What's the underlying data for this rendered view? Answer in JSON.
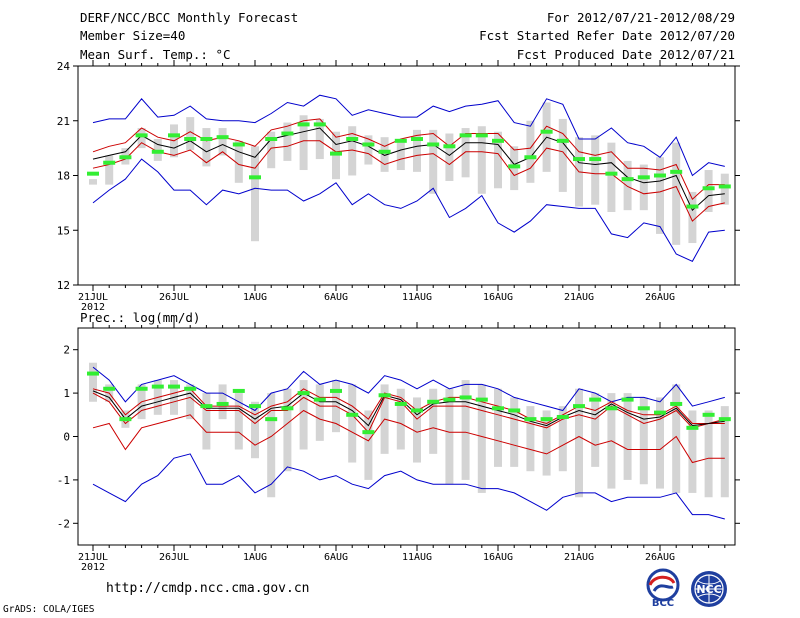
{
  "header": {
    "title": "DERF/NCC/BCC Monthly Forecast",
    "member_size": "Member Size=40",
    "panel1_variable": "Mean Surf. Temp.: °C",
    "period": "For 2012/07/21-2012/08/29",
    "started": "Fcst Started Refer Date 2012/07/20",
    "produced": "Fcst Produced Date 2012/07/21"
  },
  "footer": {
    "url": "http://cmdp.ncc.cma.gov.cn",
    "grads": "GrADS: COLA/IGES",
    "logo_bcc": "BCC",
    "logo_ncc": "NCC"
  },
  "colors": {
    "ens_max_min": "#0000cc",
    "spread": "#cc0000",
    "ens_mean": "#000000",
    "single": "#33ee33",
    "box": "#d4d4d4"
  },
  "chart_data": [
    {
      "type": "line",
      "title": "Mean Surf. Temp.: °C",
      "xlabel": "",
      "ylabel": "",
      "ylim": [
        12,
        24
      ],
      "yticks": [
        "12",
        "15",
        "18",
        "21",
        "24"
      ],
      "x_tick_labels": [
        "21JUL",
        "26JUL",
        "1AUG",
        "6AUG",
        "11AUG",
        "16AUG",
        "21AUG",
        "26AUG"
      ],
      "x_year_label": "2012",
      "x": [
        1,
        2,
        3,
        4,
        5,
        6,
        7,
        8,
        9,
        10,
        11,
        12,
        13,
        14,
        15,
        16,
        17,
        18,
        19,
        20,
        21,
        22,
        23,
        24,
        25,
        26,
        27,
        28,
        29,
        30,
        31,
        32,
        33,
        34,
        35,
        36,
        37,
        38,
        39,
        40
      ],
      "series": [
        {
          "name": "ensemble max",
          "values": [
            20.9,
            21.1,
            21.1,
            22.2,
            21.2,
            21.3,
            21.8,
            21.1,
            21.0,
            21.0,
            20.9,
            21.4,
            22.0,
            21.8,
            22.4,
            22.2,
            21.3,
            21.6,
            21.4,
            21.2,
            21.2,
            21.8,
            21.5,
            21.8,
            21.9,
            22.1,
            20.9,
            20.7,
            22.2,
            21.9,
            20.0,
            20.0,
            20.6,
            19.8,
            19.6,
            19.0,
            20.1,
            18.0,
            18.7,
            18.5
          ]
        },
        {
          "name": "ensemble min",
          "values": [
            16.5,
            17.2,
            17.8,
            18.9,
            18.2,
            17.2,
            17.2,
            16.4,
            17.2,
            17.0,
            17.3,
            17.2,
            17.2,
            16.6,
            17.0,
            17.6,
            16.4,
            17.0,
            16.4,
            16.2,
            16.6,
            17.3,
            15.7,
            16.2,
            16.9,
            15.4,
            14.9,
            15.5,
            16.4,
            16.3,
            16.2,
            16.2,
            14.8,
            14.6,
            15.4,
            15.2,
            13.7,
            13.3,
            14.9,
            15.0
          ]
        },
        {
          "name": "spread upper",
          "values": [
            19.3,
            19.6,
            19.8,
            20.6,
            20.1,
            19.9,
            20.4,
            19.9,
            20.1,
            19.9,
            19.6,
            20.5,
            20.7,
            21.0,
            21.1,
            20.1,
            20.3,
            20.0,
            19.6,
            20.0,
            20.2,
            20.3,
            19.6,
            20.3,
            20.3,
            20.3,
            19.4,
            19.5,
            20.7,
            20.3,
            19.3,
            19.1,
            19.3,
            18.4,
            18.4,
            18.3,
            18.6,
            16.7,
            17.5,
            17.5
          ]
        },
        {
          "name": "spread lower",
          "values": [
            18.4,
            18.6,
            18.9,
            19.8,
            19.3,
            19.1,
            19.4,
            18.7,
            19.3,
            18.6,
            18.4,
            19.5,
            19.6,
            19.9,
            19.9,
            19.3,
            19.4,
            19.2,
            18.6,
            18.9,
            19.1,
            19.2,
            18.6,
            19.3,
            19.3,
            19.2,
            18.0,
            18.4,
            19.5,
            19.3,
            18.2,
            18.1,
            18.1,
            17.4,
            17.0,
            17.1,
            17.4,
            15.5,
            16.3,
            16.5
          ]
        },
        {
          "name": "ensemble mean",
          "values": [
            18.9,
            19.1,
            19.3,
            20.2,
            19.7,
            19.5,
            19.9,
            19.3,
            19.7,
            19.3,
            19.0,
            20.0,
            20.2,
            20.4,
            20.6,
            19.7,
            19.9,
            19.6,
            19.1,
            19.4,
            19.6,
            19.7,
            19.1,
            19.8,
            19.8,
            19.7,
            18.6,
            19.0,
            20.1,
            19.8,
            18.7,
            18.6,
            18.7,
            17.9,
            17.6,
            17.7,
            18.0,
            16.1,
            16.9,
            17.0
          ]
        },
        {
          "name": "single forecast",
          "values": [
            18.1,
            18.7,
            19.0,
            20.2,
            19.3,
            20.2,
            20.0,
            20.0,
            20.1,
            19.7,
            17.9,
            20.0,
            20.3,
            20.8,
            20.8,
            19.2,
            20.0,
            19.7,
            19.3,
            19.9,
            20.0,
            19.7,
            19.6,
            20.2,
            20.2,
            19.9,
            18.5,
            19.0,
            20.4,
            19.9,
            18.9,
            18.9,
            18.1,
            17.8,
            17.9,
            18.0,
            18.2,
            16.3,
            17.3,
            17.4
          ]
        }
      ],
      "box_top": [
        17.8,
        19.1,
        19.5,
        20.6,
        20.0,
        20.8,
        21.2,
        20.6,
        20.6,
        19.9,
        19.6,
        20.4,
        20.9,
        21.3,
        21.1,
        20.4,
        20.7,
        20.2,
        20.1,
        19.8,
        20.5,
        20.5,
        20.3,
        20.6,
        20.7,
        20.4,
        19.6,
        21.0,
        22.0,
        21.1,
        20.1,
        20.2,
        19.8,
        18.8,
        18.6,
        19.0,
        19.8,
        17.1,
        18.3,
        18.1
      ],
      "box_bottom": [
        17.5,
        17.5,
        18.6,
        19.5,
        18.8,
        19.0,
        19.4,
        18.5,
        19.1,
        17.6,
        14.4,
        18.4,
        18.8,
        18.3,
        18.9,
        17.8,
        18.0,
        18.6,
        18.2,
        18.3,
        18.2,
        17.0,
        17.7,
        17.9,
        17.0,
        17.3,
        17.2,
        17.6,
        18.2,
        17.1,
        16.3,
        16.4,
        16.0,
        16.1,
        16.1,
        14.8,
        14.2,
        14.3,
        16.0,
        16.4
      ]
    },
    {
      "type": "line",
      "title": "Prec.: log(mm/d)",
      "xlabel": "",
      "ylabel": "",
      "ylim": [
        -2.5,
        2.5
      ],
      "yticks": [
        "-2",
        "-1",
        "0",
        "1",
        "2"
      ],
      "x_tick_labels": [
        "21JUL",
        "26JUL",
        "1AUG",
        "6AUG",
        "11AUG",
        "16AUG",
        "21AUG",
        "26AUG"
      ],
      "x_year_label": "2012",
      "x": [
        1,
        2,
        3,
        4,
        5,
        6,
        7,
        8,
        9,
        10,
        11,
        12,
        13,
        14,
        15,
        16,
        17,
        18,
        19,
        20,
        21,
        22,
        23,
        24,
        25,
        26,
        27,
        28,
        29,
        30,
        31,
        32,
        33,
        34,
        35,
        36,
        37,
        38,
        39,
        40
      ],
      "series": [
        {
          "name": "ensemble max",
          "values": [
            1.6,
            1.3,
            0.8,
            1.2,
            1.3,
            1.4,
            1.2,
            1.0,
            1.0,
            0.8,
            0.6,
            1.0,
            1.1,
            1.5,
            1.2,
            1.3,
            1.2,
            1.0,
            1.4,
            1.3,
            1.1,
            1.3,
            1.1,
            1.2,
            1.2,
            1.1,
            0.9,
            0.8,
            0.7,
            0.6,
            1.1,
            1.0,
            0.8,
            0.9,
            0.9,
            0.8,
            1.2,
            0.7,
            0.8,
            0.9
          ]
        },
        {
          "name": "ensemble min",
          "values": [
            -1.1,
            -1.3,
            -1.5,
            -1.1,
            -0.9,
            -0.5,
            -0.4,
            -1.1,
            -1.1,
            -0.9,
            -1.3,
            -1.1,
            -0.7,
            -0.8,
            -1.0,
            -0.9,
            -1.1,
            -1.2,
            -0.9,
            -0.8,
            -1.0,
            -1.1,
            -1.1,
            -1.1,
            -1.2,
            -1.2,
            -1.3,
            -1.5,
            -1.7,
            -1.4,
            -1.3,
            -1.3,
            -1.5,
            -1.4,
            -1.4,
            -1.4,
            -1.3,
            -1.8,
            -1.8,
            -1.9
          ]
        },
        {
          "name": "spread upper",
          "values": [
            1.1,
            1.0,
            0.5,
            0.8,
            0.9,
            1.0,
            1.1,
            0.7,
            0.7,
            0.7,
            0.5,
            0.7,
            0.8,
            1.1,
            0.9,
            0.9,
            0.7,
            0.4,
            1.0,
            0.9,
            0.6,
            0.8,
            0.9,
            0.9,
            0.8,
            0.7,
            0.6,
            0.4,
            0.3,
            0.5,
            0.7,
            0.6,
            0.8,
            0.6,
            0.5,
            0.5,
            0.7,
            0.3,
            0.3,
            0.4
          ]
        },
        {
          "name": "spread lower",
          "values": [
            1.0,
            0.8,
            0.3,
            0.6,
            0.7,
            0.8,
            0.9,
            0.6,
            0.6,
            0.6,
            0.3,
            0.6,
            0.6,
            0.9,
            0.7,
            0.7,
            0.5,
            0.1,
            0.9,
            0.8,
            0.4,
            0.7,
            0.7,
            0.7,
            0.6,
            0.5,
            0.4,
            0.3,
            0.2,
            0.4,
            0.5,
            0.4,
            0.7,
            0.5,
            0.3,
            0.4,
            0.6,
            0.2,
            0.3,
            0.3
          ]
        },
        {
          "name": "ensemble mean",
          "values": [
            1.05,
            0.9,
            0.4,
            0.7,
            0.8,
            0.9,
            1.0,
            0.65,
            0.65,
            0.65,
            0.4,
            0.65,
            0.7,
            1.0,
            0.8,
            0.8,
            0.6,
            0.25,
            0.95,
            0.85,
            0.5,
            0.75,
            0.8,
            0.8,
            0.7,
            0.6,
            0.5,
            0.35,
            0.25,
            0.45,
            0.6,
            0.5,
            0.75,
            0.55,
            0.4,
            0.45,
            0.65,
            0.25,
            0.3,
            0.35
          ]
        },
        {
          "name": "lower red",
          "values": [
            0.2,
            0.3,
            -0.3,
            0.2,
            0.3,
            0.4,
            0.5,
            0.1,
            0.1,
            0.1,
            -0.2,
            0.0,
            0.3,
            0.6,
            0.4,
            0.3,
            0.1,
            -0.1,
            0.4,
            0.3,
            0.1,
            0.2,
            0.1,
            0.1,
            0.0,
            -0.1,
            -0.2,
            -0.3,
            -0.4,
            -0.2,
            0.0,
            -0.2,
            -0.1,
            -0.3,
            -0.3,
            -0.3,
            0.0,
            -0.6,
            -0.5,
            -0.5
          ]
        },
        {
          "name": "single forecast",
          "values": [
            1.45,
            1.1,
            0.4,
            1.1,
            1.15,
            1.15,
            1.1,
            0.7,
            0.75,
            1.05,
            0.7,
            0.4,
            0.65,
            1.0,
            0.85,
            1.05,
            0.5,
            0.1,
            0.95,
            0.75,
            0.6,
            0.8,
            0.85,
            0.9,
            0.85,
            0.65,
            0.6,
            0.4,
            0.4,
            0.45,
            0.7,
            0.85,
            0.65,
            0.85,
            0.65,
            0.55,
            0.75,
            0.2,
            0.5,
            0.4
          ]
        }
      ],
      "box_top": [
        1.7,
        1.2,
        0.6,
        1.2,
        1.3,
        1.3,
        1.2,
        1.0,
        1.2,
        1.0,
        0.8,
        1.0,
        1.1,
        1.3,
        1.2,
        1.3,
        1.2,
        0.6,
        1.2,
        1.1,
        0.9,
        1.1,
        1.1,
        1.3,
        1.2,
        1.1,
        0.9,
        0.7,
        0.6,
        0.7,
        1.1,
        1.0,
        1.0,
        1.0,
        0.9,
        0.9,
        1.2,
        0.6,
        0.6,
        0.7
      ],
      "box_bottom": [
        0.8,
        0.8,
        0.2,
        0.4,
        0.5,
        0.5,
        0.4,
        -0.3,
        0.4,
        -0.3,
        -0.5,
        -1.4,
        -0.8,
        -0.3,
        -0.1,
        0.1,
        -0.6,
        -1.0,
        -0.4,
        -0.3,
        -0.6,
        -0.4,
        -1.1,
        -1.0,
        -1.3,
        -0.7,
        -0.7,
        -0.8,
        -0.9,
        -0.8,
        -1.4,
        -0.7,
        -1.2,
        -1.0,
        -1.1,
        -1.2,
        -1.3,
        -1.3,
        -1.4,
        -1.4
      ]
    }
  ]
}
